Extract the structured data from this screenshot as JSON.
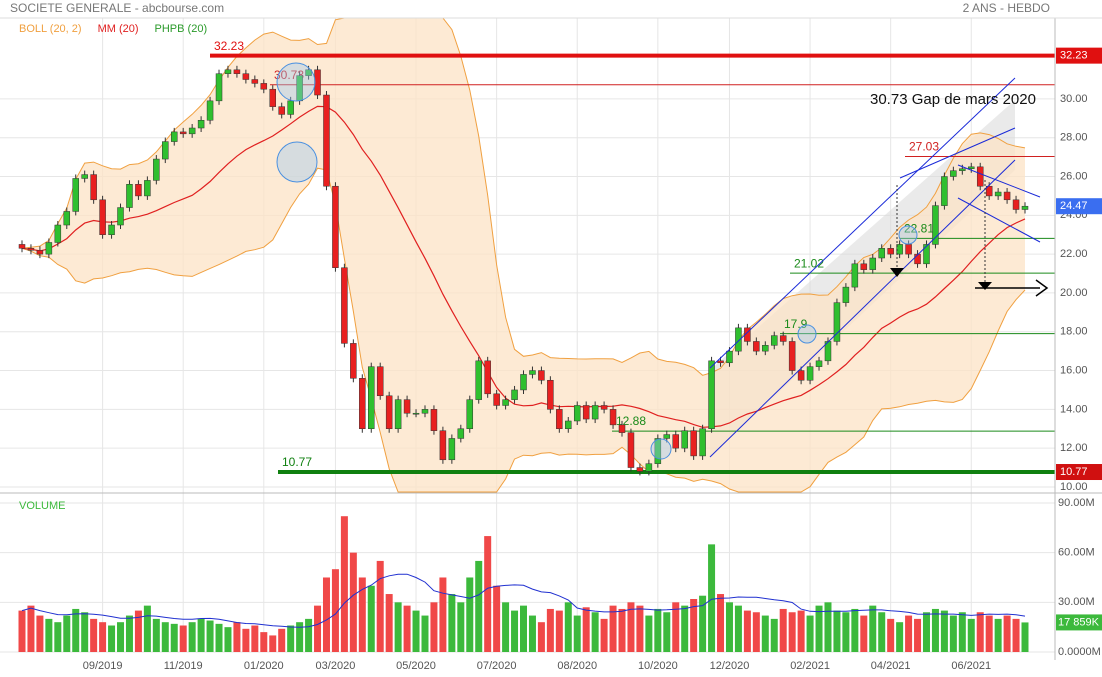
{
  "chart_data": [
    {
      "type": "candlestick",
      "title": "SOCIETE GENERALE - abcbourse.com",
      "subtitle": "2 ANS - HEBDO",
      "indicators": [
        {
          "name": "BOLL (20, 2)",
          "color": "#f0a040"
        },
        {
          "name": "MM (20)",
          "color": "#e02020"
        },
        {
          "name": "PHPB (20)",
          "color": "#2a9a2a"
        }
      ],
      "categories": [
        null,
        null,
        null,
        null,
        null,
        null,
        null,
        null,
        null,
        "09/2019",
        null,
        null,
        null,
        null,
        null,
        null,
        null,
        null,
        "11/2019",
        null,
        null,
        null,
        null,
        null,
        null,
        null,
        null,
        "01/2020",
        null,
        null,
        null,
        null,
        null,
        null,
        null,
        "03/2020",
        null,
        null,
        null,
        null,
        null,
        null,
        null,
        null,
        "05/2020",
        null,
        null,
        null,
        null,
        null,
        null,
        null,
        null,
        "07/2020",
        null,
        null,
        null,
        null,
        null,
        null,
        null,
        null,
        "08/2020",
        null,
        null,
        null,
        null,
        null,
        null,
        null,
        null,
        "10/2020",
        null,
        null,
        null,
        null,
        null,
        null,
        null,
        "12/2020",
        null,
        null,
        null,
        null,
        null,
        null,
        null,
        null,
        "02/2021",
        null,
        null,
        null,
        null,
        null,
        null,
        null,
        null,
        "04/2021",
        null,
        null,
        null,
        null,
        null,
        null,
        null,
        null,
        "06/2021",
        null,
        null,
        null,
        null,
        null,
        null
      ],
      "open": [
        22.5,
        22.3,
        22.2,
        22.0,
        22.6,
        23.5,
        24.2,
        25.9,
        26.1,
        24.8,
        23.0,
        23.5,
        24.4,
        25.6,
        25.0,
        25.8,
        26.9,
        27.8,
        28.3,
        28.2,
        28.5,
        28.9,
        29.9,
        31.3,
        31.5,
        31.3,
        31.0,
        30.8,
        30.5,
        29.6,
        29.2,
        29.9,
        31.2,
        31.5,
        30.2,
        25.5,
        21.3,
        17.4,
        15.6,
        13.0,
        16.2,
        14.7,
        13.0,
        14.5,
        13.8,
        13.8,
        14.0,
        12.9,
        11.4,
        12.5,
        13.0,
        14.5,
        16.5,
        14.8,
        14.2,
        14.5,
        15.0,
        15.8,
        16.0,
        15.5,
        14.0,
        13.0,
        13.4,
        14.2,
        13.5,
        14.2,
        14.0,
        13.2,
        12.8,
        11.0,
        10.8,
        11.2,
        12.5,
        12.7,
        12.0,
        12.9,
        11.6,
        13.0,
        16.5,
        16.4,
        17.0,
        18.2,
        17.5,
        17.0,
        17.3,
        17.8,
        17.5,
        16.0,
        15.5,
        16.2,
        16.5,
        17.5,
        19.5,
        20.3,
        21.5,
        21.2,
        21.8,
        22.3,
        22.0,
        22.5,
        22.0,
        21.5,
        22.5,
        24.5,
        26.0,
        26.3,
        26.4,
        26.5,
        25.5,
        25.0,
        25.2,
        24.8,
        24.3
      ],
      "close": [
        22.3,
        22.2,
        22.0,
        22.6,
        23.5,
        24.2,
        25.9,
        26.1,
        24.8,
        23.0,
        23.5,
        24.4,
        25.6,
        25.0,
        25.8,
        26.9,
        27.8,
        28.3,
        28.2,
        28.5,
        28.9,
        29.9,
        31.3,
        31.5,
        31.3,
        31.0,
        30.8,
        30.5,
        29.6,
        29.2,
        29.9,
        31.2,
        31.5,
        30.2,
        25.5,
        21.3,
        17.4,
        15.6,
        13.0,
        16.2,
        14.7,
        13.0,
        14.5,
        13.8,
        13.8,
        14.0,
        12.9,
        11.4,
        12.5,
        13.0,
        14.5,
        16.5,
        14.8,
        14.2,
        14.5,
        15.0,
        15.8,
        16.0,
        15.5,
        14.0,
        13.0,
        13.4,
        14.2,
        13.5,
        14.2,
        14.0,
        13.2,
        12.8,
        11.0,
        10.8,
        11.2,
        12.5,
        12.7,
        12.0,
        12.9,
        11.6,
        13.0,
        16.5,
        16.4,
        17.0,
        18.2,
        17.5,
        17.0,
        17.3,
        17.8,
        17.5,
        16.0,
        15.5,
        16.2,
        16.5,
        17.5,
        19.5,
        20.3,
        21.5,
        21.2,
        21.8,
        22.3,
        22.0,
        22.5,
        22.0,
        21.5,
        22.5,
        24.5,
        26.0,
        26.3,
        26.4,
        26.5,
        25.5,
        25.0,
        25.2,
        24.8,
        24.3,
        24.47
      ],
      "ylim": [
        9.74,
        34.17
      ],
      "yticks": [
        {
          "value": 10,
          "label": "10.00"
        },
        {
          "value": 12,
          "label": "12.00"
        },
        {
          "value": 14,
          "label": "14.00"
        },
        {
          "value": 16,
          "label": "16.00"
        },
        {
          "value": 18,
          "label": "18.00"
        },
        {
          "value": 20,
          "label": "20.00"
        },
        {
          "value": 22,
          "label": "22.00"
        },
        {
          "value": 24,
          "label": "24.00"
        },
        {
          "value": 26,
          "label": "26.00"
        },
        {
          "value": 28,
          "label": "28.00"
        },
        {
          "value": 30,
          "label": "30.00"
        }
      ],
      "levels": [
        {
          "value": 32.23,
          "color": "#e01010"
        },
        {
          "value": 30.73,
          "color": "#d02020"
        },
        {
          "value": 27.03,
          "color": "#d02020"
        },
        {
          "value": 22.81,
          "color": "#1a8a1a"
        },
        {
          "value": 21.02,
          "color": "#1a8a1a"
        },
        {
          "value": 17.9,
          "color": "#1a8a1a"
        },
        {
          "value": 12.88,
          "color": "#1a8a1a"
        },
        {
          "value": 10.77,
          "color": "#108010"
        }
      ],
      "annotation": "30.73 Gap de mars 2020",
      "grid": true
    },
    {
      "type": "bar",
      "title": "VOLUME",
      "values": [
        25,
        28,
        22,
        20,
        18,
        22,
        26,
        24,
        20,
        18,
        16,
        18,
        22,
        25,
        28,
        20,
        18,
        17,
        16,
        18,
        20,
        19,
        17,
        15,
        18,
        14,
        16,
        12,
        10,
        14,
        16,
        18,
        20,
        28,
        45,
        50,
        82,
        60,
        45,
        40,
        55,
        35,
        30,
        28,
        25,
        22,
        30,
        45,
        35,
        30,
        45,
        55,
        70,
        40,
        30,
        25,
        28,
        22,
        18,
        26,
        25,
        30,
        22,
        27,
        24,
        20,
        28,
        26,
        30,
        28,
        22,
        26,
        24,
        30,
        28,
        32,
        34,
        65,
        35,
        30,
        28,
        25,
        24,
        22,
        20,
        26,
        24,
        25,
        22,
        28,
        30,
        25,
        24,
        26,
        22,
        28,
        24,
        20,
        18,
        22,
        20,
        24,
        26,
        25,
        22,
        24,
        20,
        24,
        22,
        20,
        22,
        20,
        17.859
      ],
      "value_labels": {
        "112": "17 859K"
      },
      "colors": {
        "up": "#3cb93c",
        "down": "#f04848",
        "average": "#2030d0"
      },
      "ylim": [
        0,
        93.6
      ],
      "yticks": [
        {
          "value": 0,
          "label": "0.0000M"
        },
        {
          "value": 30,
          "label": "30.00M"
        },
        {
          "value": 60,
          "label": "60.00M"
        },
        {
          "value": 90,
          "label": "90.00M"
        }
      ]
    }
  ]
}
